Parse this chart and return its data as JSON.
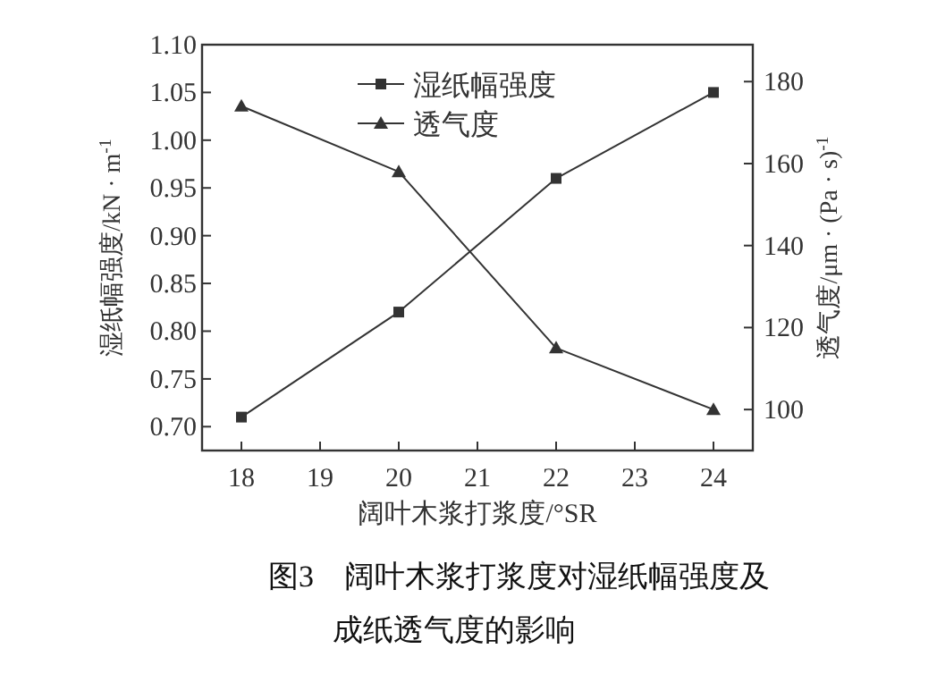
{
  "chart_data": {
    "type": "line",
    "xlabel": "阔叶木浆打浆度/°SR",
    "ylabel": "湿纸幅强度/kN · m$^{-1}$",
    "y2label": "透气度/μm · (Pa · s)$^{-1}$",
    "annotations": [
      "图3　阔叶木浆打浆度对湿纸幅强度及",
      "成纸透气度的影响"
    ],
    "x": [
      18,
      20,
      22,
      24
    ],
    "series": [
      {
        "name": "湿纸幅强度",
        "color": "#333333",
        "marker": "square",
        "values": [
          0.71,
          0.82,
          0.96,
          1.05
        ]
      },
      {
        "name": "透气度",
        "color": "#333333",
        "marker": "triangle",
        "axis": "y2",
        "values": [
          174,
          158,
          115,
          100
        ]
      }
    ],
    "xlim": [
      17.5,
      24.5
    ],
    "xticks": [
      18,
      19,
      20,
      21,
      22,
      23,
      24
    ],
    "ylim": [
      0.675,
      1.1
    ],
    "yticks": [
      {
        "value": 0.7,
        "label": "0.70"
      },
      0.75,
      {
        "value": 0.8,
        "label": "0.80"
      },
      0.85,
      {
        "value": 0.9,
        "label": "0.90"
      },
      0.95,
      {
        "value": 1.0,
        "label": "1.00"
      },
      1.05,
      {
        "value": 1.1,
        "label": "1.10"
      }
    ],
    "y2lim": [
      90,
      189
    ],
    "y2ticks": [
      100,
      120,
      140,
      160,
      180
    ],
    "legend": "top",
    "grid": false
  }
}
